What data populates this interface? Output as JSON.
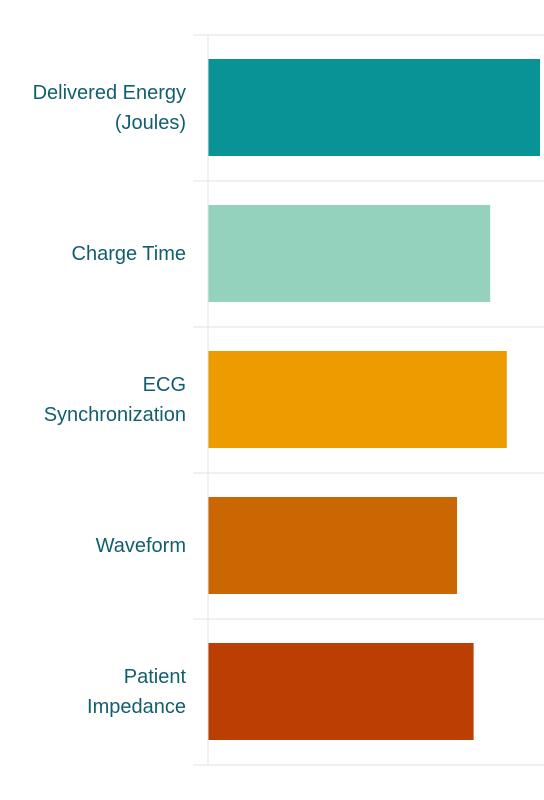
{
  "chart_data": {
    "type": "hbar",
    "categories": [
      "Delivered Energy\n(Joules)",
      "Charge Time",
      "ECG\nSynchronization",
      "Waveform",
      "Patient\nImpedance"
    ],
    "values": [
      100,
      85,
      90,
      75,
      80
    ],
    "colors": [
      "#0a9396",
      "#94d2bd",
      "#ee9b00",
      "#ca6702",
      "#bb3e03"
    ]
  }
}
